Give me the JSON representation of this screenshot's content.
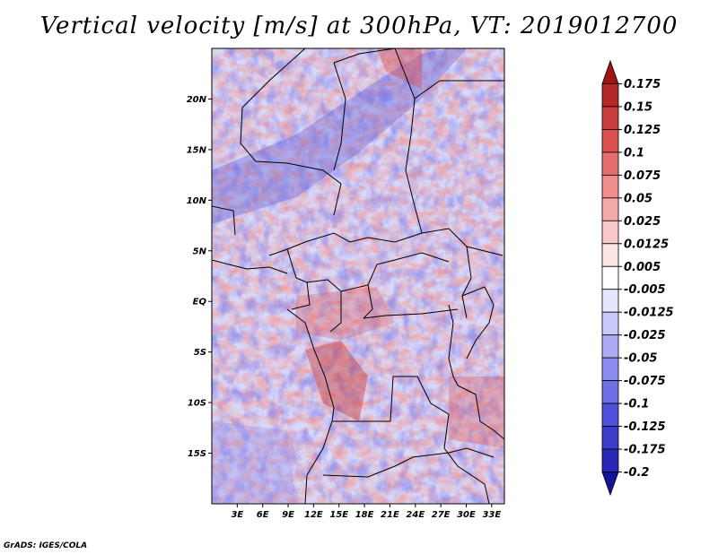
{
  "title": "Vertical velocity [m/s] at 300hPa, VT: 2019012700",
  "credit": "GrADS: IGES/COLA",
  "map": {
    "lat_ticks": [
      "20N",
      "15N",
      "10N",
      "5N",
      "EQ",
      "5S",
      "10S",
      "15S"
    ],
    "lon_ticks": [
      "3E",
      "6E",
      "9E",
      "12E",
      "15E",
      "18E",
      "21E",
      "24E",
      "27E",
      "30E",
      "33E"
    ],
    "lat_values": [
      20,
      15,
      10,
      5,
      0,
      -5,
      -10,
      -15
    ],
    "lon_values": [
      3,
      6,
      9,
      12,
      15,
      18,
      21,
      24,
      27,
      30,
      33
    ],
    "lat_range": [
      -20,
      25
    ],
    "lon_range": [
      0,
      34.5
    ]
  },
  "colorbar": {
    "labels": [
      "0.175",
      "0.15",
      "0.125",
      "0.1",
      "0.075",
      "0.05",
      "0.025",
      "0.0125",
      "0.005",
      "-0.005",
      "-0.0125",
      "-0.025",
      "-0.05",
      "-0.075",
      "-0.1",
      "-0.125",
      "-0.175",
      "-0.2"
    ],
    "colors": [
      "#a01414",
      "#b42828",
      "#c83c3c",
      "#dc5050",
      "#e66e6e",
      "#f08c8c",
      "#f5aaaa",
      "#fac8c8",
      "#fde6e6",
      "#ffffff",
      "#e6e6fd",
      "#c8c8fa",
      "#aaaaf5",
      "#8c8cf0",
      "#6e6ee6",
      "#5050dc",
      "#3c3cc8",
      "#2828b4",
      "#141496"
    ]
  }
}
